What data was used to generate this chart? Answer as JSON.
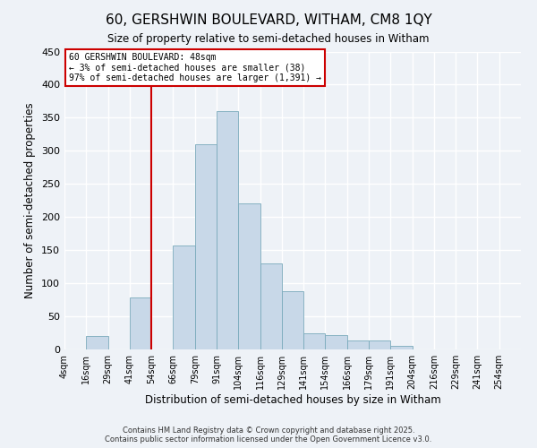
{
  "title": "60, GERSHWIN BOULEVARD, WITHAM, CM8 1QY",
  "subtitle": "Size of property relative to semi-detached houses in Witham",
  "xlabel": "Distribution of semi-detached houses by size in Witham",
  "ylabel": "Number of semi-detached properties",
  "bin_labels": [
    "4sqm",
    "16sqm",
    "29sqm",
    "41sqm",
    "54sqm",
    "66sqm",
    "79sqm",
    "91sqm",
    "104sqm",
    "116sqm",
    "129sqm",
    "141sqm",
    "154sqm",
    "166sqm",
    "179sqm",
    "191sqm",
    "204sqm",
    "216sqm",
    "229sqm",
    "241sqm",
    "254sqm"
  ],
  "bar_values": [
    0,
    20,
    0,
    78,
    0,
    157,
    310,
    360,
    220,
    130,
    88,
    25,
    22,
    13,
    13,
    5,
    0,
    0,
    0,
    0,
    0
  ],
  "bar_color": "#c8d8e8",
  "bar_edge_color": "#7aaabb",
  "ylim": [
    0,
    450
  ],
  "yticks": [
    0,
    50,
    100,
    150,
    200,
    250,
    300,
    350,
    400,
    450
  ],
  "vline_index": 4,
  "vline_color": "#cc0000",
  "annotation_text": "60 GERSHWIN BOULEVARD: 48sqm\n← 3% of semi-detached houses are smaller (38)\n97% of semi-detached houses are larger (1,391) →",
  "annotation_box_color": "#ffffff",
  "annotation_box_edge": "#cc0000",
  "footer_line1": "Contains HM Land Registry data © Crown copyright and database right 2025.",
  "footer_line2": "Contains public sector information licensed under the Open Government Licence v3.0.",
  "bg_color": "#eef2f7",
  "grid_color": "#ffffff"
}
